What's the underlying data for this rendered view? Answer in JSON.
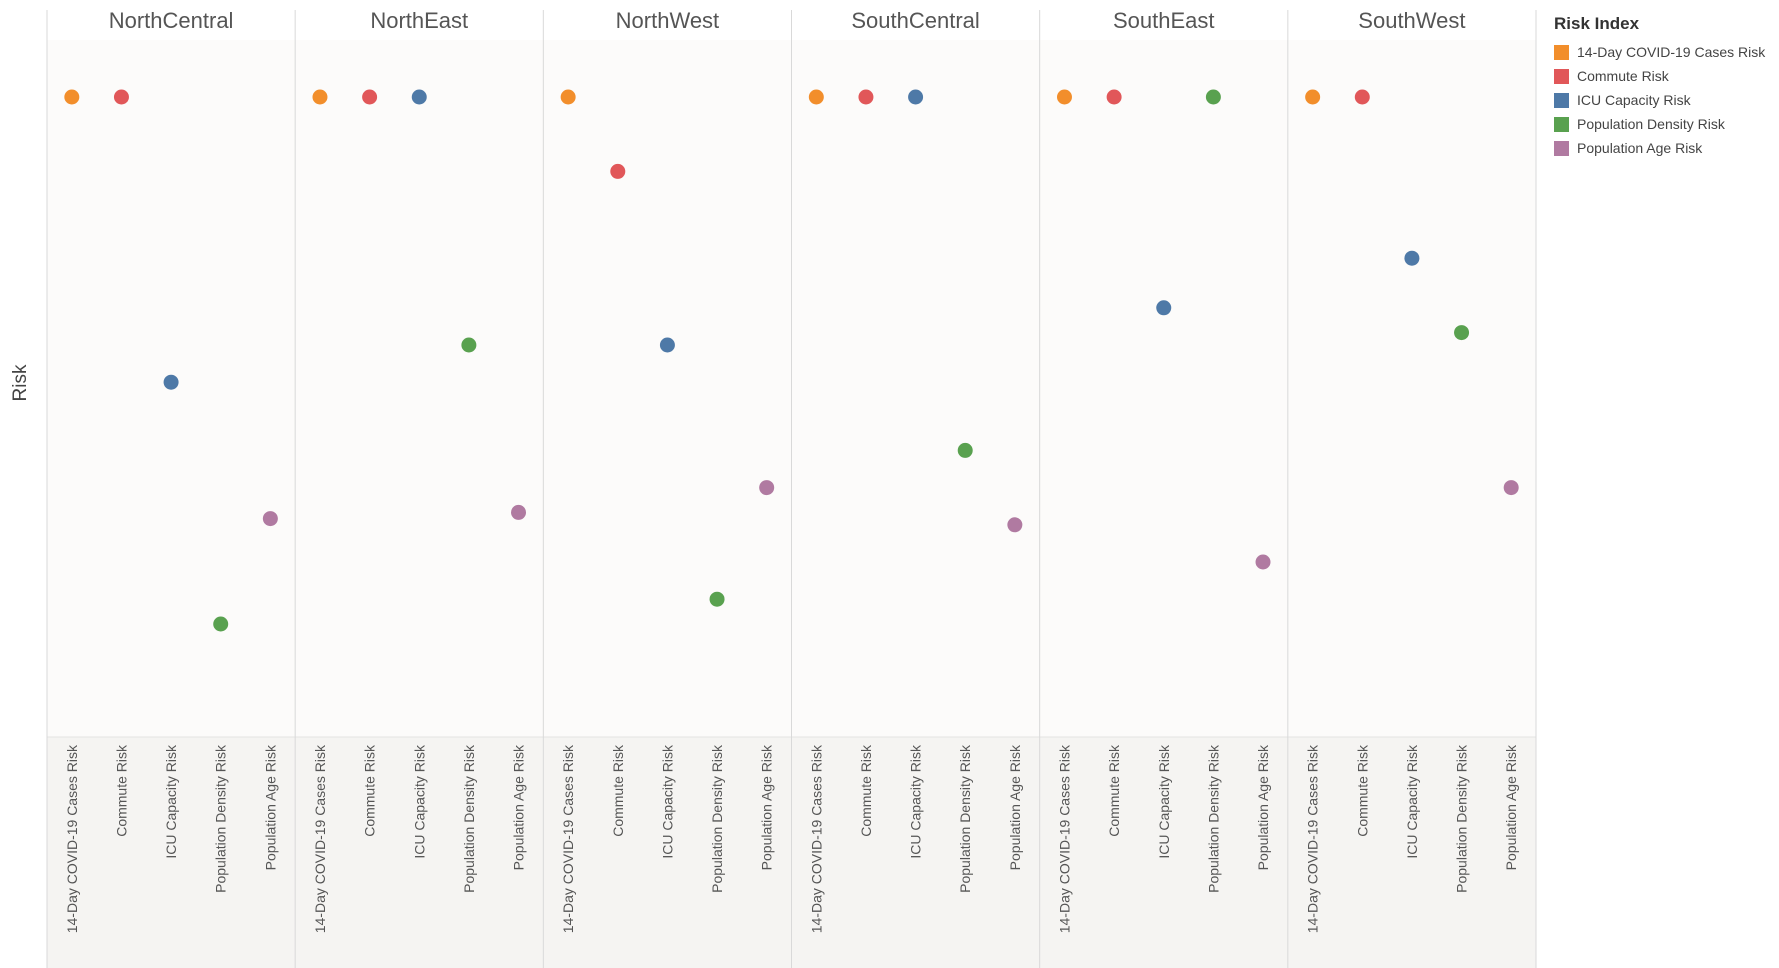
{
  "chart_data": {
    "type": "scatter",
    "ylabel": "Risk",
    "xlabel": "",
    "title": "",
    "grid": false,
    "legend_placement": "right",
    "ylim": [
      0,
      1
    ],
    "panels": [
      "NorthCentral",
      "NorthEast",
      "NorthWest",
      "SouthCentral",
      "SouthEast",
      "SouthWest"
    ],
    "categories": [
      "14-Day COVID-19 Cases Risk",
      "Commute Risk",
      "ICU Capacity Risk",
      "Population Density Risk",
      "Population Age Risk"
    ],
    "legend": {
      "title": "Risk Index",
      "entries": [
        {
          "name": "14-Day COVID-19 Cases Risk",
          "color": "#F28E2B"
        },
        {
          "name": "Commute Risk",
          "color": "#E15759"
        },
        {
          "name": "ICU Capacity Risk",
          "color": "#4E79A7"
        },
        {
          "name": "Population Density Risk",
          "color": "#59A14F"
        },
        {
          "name": "Population Age Risk",
          "color": "#B07AA1"
        }
      ]
    },
    "series": [
      {
        "panel": "NorthCentral",
        "values": [
          1.0,
          1.0,
          0.54,
          0.15,
          0.32
        ]
      },
      {
        "panel": "NorthEast",
        "values": [
          1.0,
          1.0,
          1.0,
          0.6,
          0.33
        ]
      },
      {
        "panel": "NorthWest",
        "values": [
          1.0,
          0.88,
          0.6,
          0.19,
          0.37
        ]
      },
      {
        "panel": "SouthCentral",
        "values": [
          1.0,
          1.0,
          1.0,
          0.43,
          0.31
        ]
      },
      {
        "panel": "SouthEast",
        "values": [
          1.0,
          1.0,
          0.66,
          1.0,
          0.25
        ]
      },
      {
        "panel": "SouthWest",
        "values": [
          1.0,
          1.0,
          0.74,
          0.62,
          0.37
        ]
      }
    ]
  }
}
